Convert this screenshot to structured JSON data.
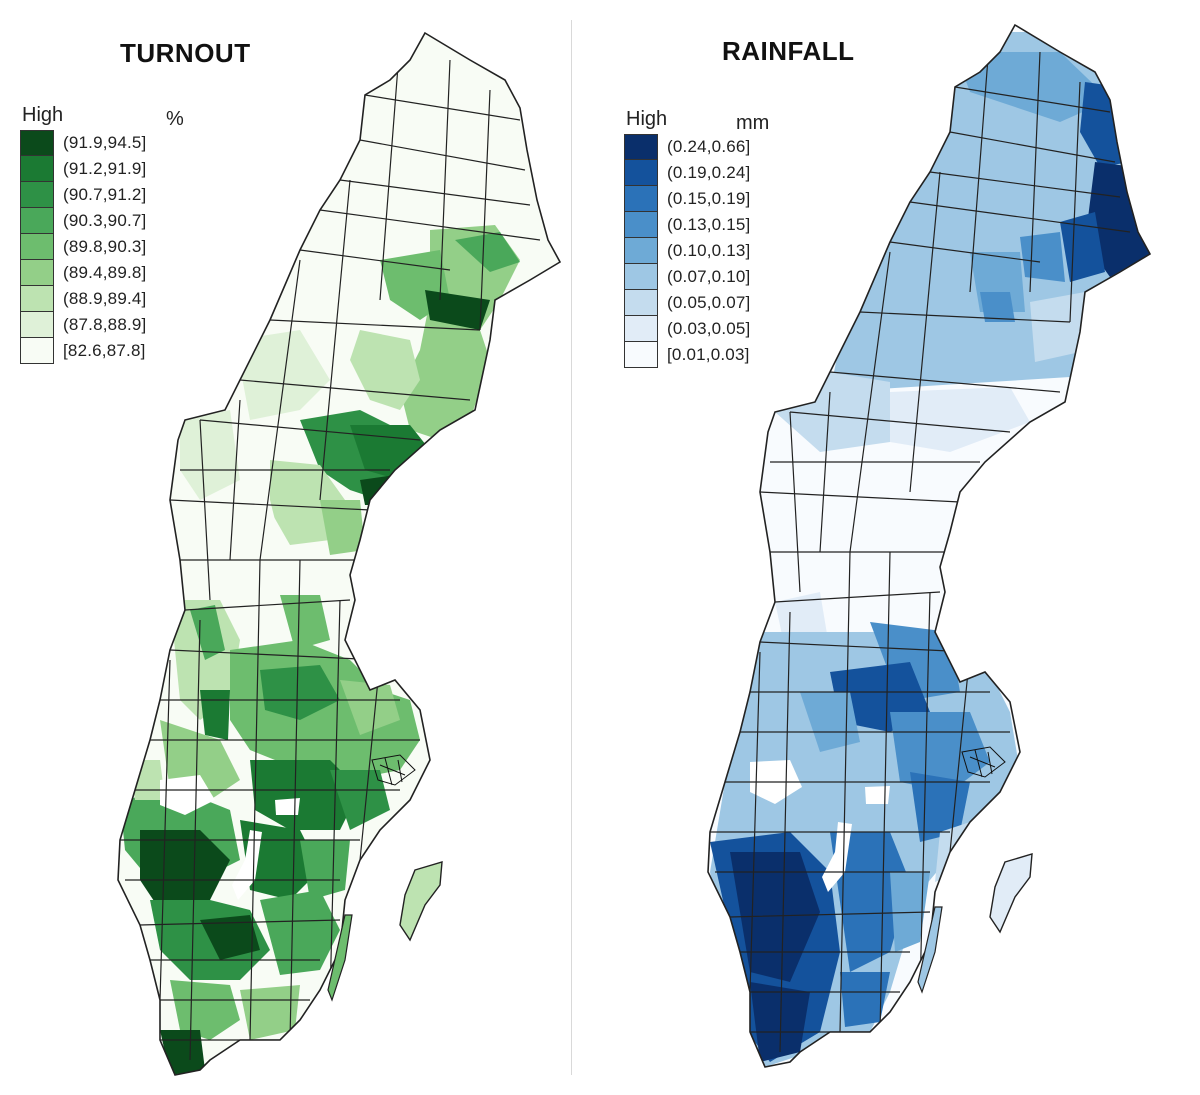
{
  "maps": [
    {
      "title": "TURNOUT",
      "legend": {
        "high_label": "High",
        "unit": "%",
        "classes": [
          {
            "label": "(91.9,94.5]",
            "color": "#0b4a1b"
          },
          {
            "label": "(91.2,91.9]",
            "color": "#1b7a33"
          },
          {
            "label": "(90.7,91.2]",
            "color": "#2e9146"
          },
          {
            "label": "(90.3,90.7]",
            "color": "#4aa85a"
          },
          {
            "label": "(89.8,90.3]",
            "color": "#6dbd6e"
          },
          {
            "label": "(89.4,89.8]",
            "color": "#93cf88"
          },
          {
            "label": "(88.9,89.4]",
            "color": "#bde3b1"
          },
          {
            "label": "(87.8,88.9]",
            "color": "#dff1d8"
          },
          {
            "label": "[82.6,87.8]",
            "color": "#f8fcf5"
          }
        ]
      }
    },
    {
      "title": "RAINFALL",
      "legend": {
        "high_label": "High",
        "unit": "mm",
        "classes": [
          {
            "label": "(0.24,0.66]",
            "color": "#0a2f6b"
          },
          {
            "label": "(0.19,0.24]",
            "color": "#14529c"
          },
          {
            "label": "(0.15,0.19]",
            "color": "#2b72b8"
          },
          {
            "label": "(0.13,0.15]",
            "color": "#4a8fc9"
          },
          {
            "label": "(0.10,0.13]",
            "color": "#6eaad6"
          },
          {
            "label": "(0.07,0.10]",
            "color": "#9ec7e4"
          },
          {
            "label": "(0.05,0.07]",
            "color": "#c4dcee"
          },
          {
            "label": "(0.03,0.05]",
            "color": "#e1ecf7"
          },
          {
            "label": "[0.01,0.03]",
            "color": "#f8fbfe"
          }
        ]
      }
    }
  ]
}
